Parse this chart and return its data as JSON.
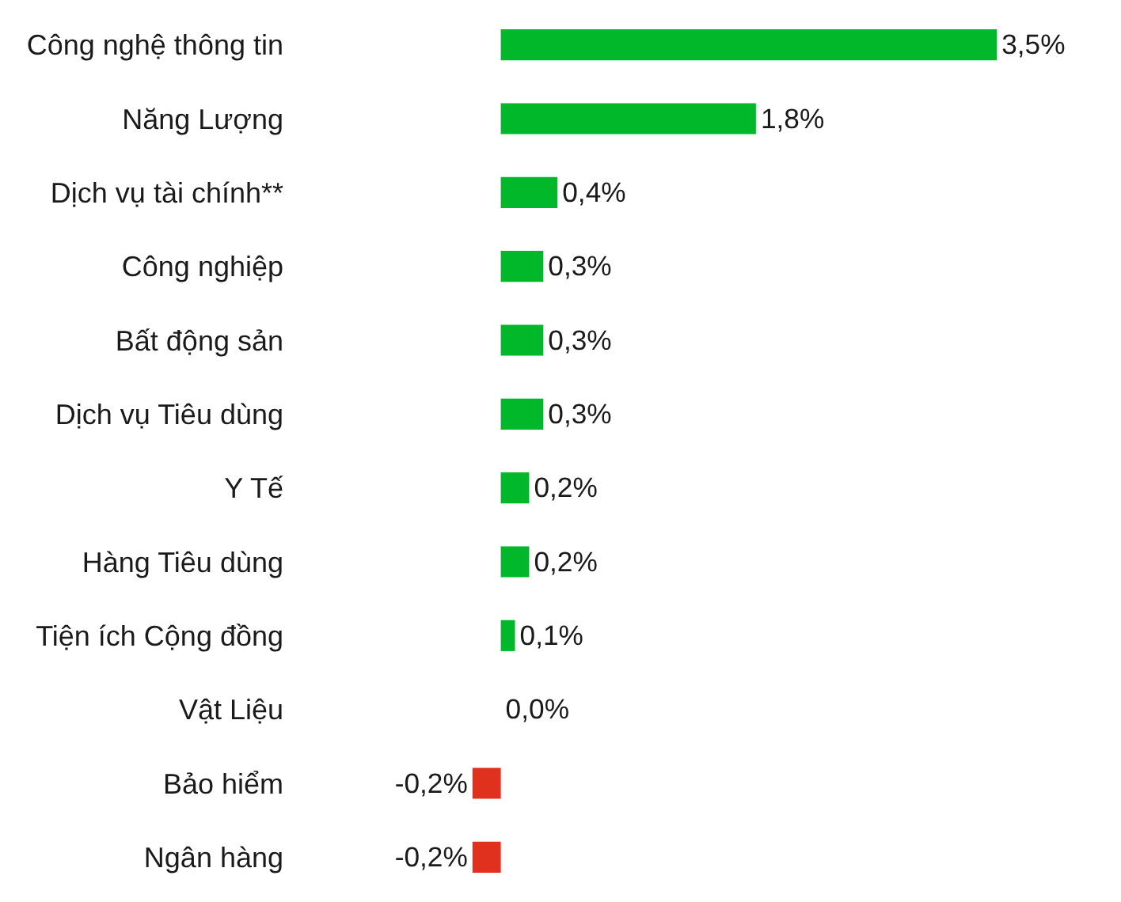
{
  "chart_data": {
    "type": "bar",
    "orientation": "horizontal",
    "categories": [
      "Công nghệ thông tin",
      "Năng Lượng",
      "Dịch vụ tài chính**",
      "Công nghiệp",
      "Bất động sản",
      "Dịch vụ Tiêu dùng",
      "Y Tế",
      "Hàng Tiêu dùng",
      "Tiện ích Cộng đồng",
      "Vật Liệu",
      "Bảo hiểm",
      "Ngân hàng"
    ],
    "values": [
      3.5,
      1.8,
      0.4,
      0.3,
      0.3,
      0.3,
      0.2,
      0.2,
      0.1,
      0.0,
      -0.2,
      -0.2
    ],
    "colors": [
      "#00b82a",
      "#00b82a",
      "#00b82a",
      "#00b82a",
      "#00b82a",
      "#00b82a",
      "#00b82a",
      "#00b82a",
      "#00b82a",
      "#00b82a",
      "#e0301e",
      "#e0301e"
    ],
    "value_labels": [
      "3,5%",
      "1,8%",
      "0,4%",
      "0,3%",
      "0,3%",
      "0,3%",
      "0,2%",
      "0,2%",
      "0,1%",
      "0,0%",
      "-0,2%",
      "-0,2%"
    ]
  }
}
